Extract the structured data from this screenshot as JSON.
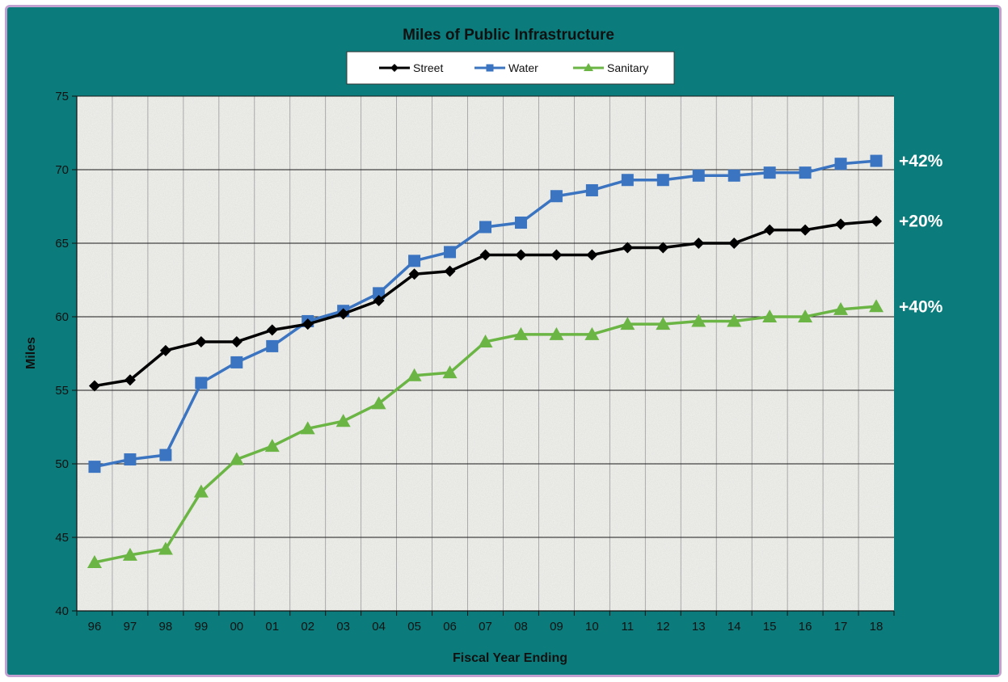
{
  "chart_data": {
    "type": "line",
    "title": "Miles of Public Infrastructure",
    "xlabel": "Fiscal Year Ending",
    "ylabel": "Miles",
    "ylim": [
      40,
      75
    ],
    "yticks": [
      "40",
      "45",
      "50",
      "55",
      "60",
      "65",
      "70",
      "75"
    ],
    "categories": [
      "96",
      "97",
      "98",
      "99",
      "00",
      "01",
      "02",
      "03",
      "04",
      "05",
      "06",
      "07",
      "08",
      "09",
      "10",
      "11",
      "12",
      "13",
      "14",
      "15",
      "16",
      "17",
      "18"
    ],
    "series": [
      {
        "name": "Street",
        "color": "#000000",
        "marker": "diamond",
        "values": [
          55.3,
          55.7,
          57.7,
          58.3,
          58.3,
          59.1,
          59.5,
          60.2,
          61.1,
          62.9,
          63.1,
          64.2,
          64.2,
          64.2,
          64.2,
          64.7,
          64.7,
          65.0,
          65.0,
          65.9,
          65.9,
          66.3,
          66.5
        ],
        "annotation": "+20%"
      },
      {
        "name": "Water",
        "color": "#3b74c0",
        "marker": "square",
        "values": [
          49.8,
          50.3,
          50.6,
          55.5,
          56.9,
          58.0,
          59.7,
          60.4,
          61.6,
          63.8,
          64.4,
          66.1,
          66.4,
          68.2,
          68.6,
          69.3,
          69.3,
          69.6,
          69.6,
          69.8,
          69.8,
          70.4,
          70.6
        ],
        "annotation": "+42%"
      },
      {
        "name": "Sanitary",
        "color": "#6bb544",
        "marker": "triangle",
        "values": [
          43.3,
          43.8,
          44.2,
          48.1,
          50.3,
          51.2,
          52.4,
          52.9,
          54.1,
          56.0,
          56.2,
          58.3,
          58.8,
          58.8,
          58.8,
          59.5,
          59.5,
          59.7,
          59.7,
          60.0,
          60.0,
          60.5,
          60.7
        ],
        "annotation": "+40%"
      }
    ],
    "legend_position": "top-center",
    "grid": true
  }
}
